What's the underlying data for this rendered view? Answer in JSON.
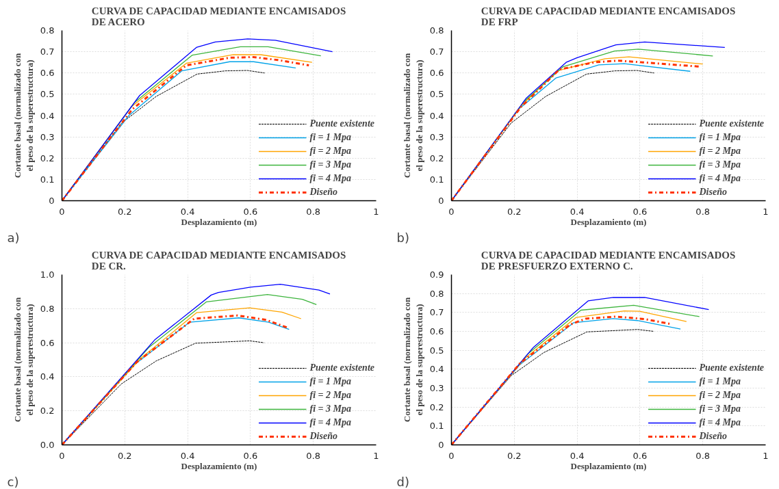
{
  "chart_data": [
    {
      "type": "line",
      "title": "CURVA DE CAPACIDAD MEDIANTE ENCAMISADOS\nDE ACERO",
      "xlabel": "Desplazamiento (m)",
      "ylabel": "Cortante basal (normalizado con\nel peso de la superestructura)",
      "annotations": [
        "a)"
      ],
      "xlim": [
        0,
        1
      ],
      "ylim": [
        0,
        0.8
      ],
      "xticks": [
        0,
        0.2,
        0.4,
        0.6,
        0.8,
        1
      ],
      "yticks": [
        0,
        0.1,
        0.2,
        0.3,
        0.4,
        0.5,
        0.6,
        0.7,
        0.8
      ],
      "grid": true,
      "legend": "bottom right",
      "series": [
        {
          "name": "Puente existente",
          "color": "#000000",
          "line_style": "dashed",
          "x": [
            0,
            0.19,
            0.3,
            0.43,
            0.52,
            0.59,
            0.645
          ],
          "values": [
            0,
            0.365,
            0.49,
            0.595,
            0.61,
            0.612,
            0.6
          ]
        },
        {
          "name": "fi = 1 Mpa",
          "color": "#00a2e8",
          "line_style": "solid",
          "x": [
            0,
            0.213,
            0.381,
            0.534,
            0.61,
            0.744
          ],
          "values": [
            0,
            0.4,
            0.61,
            0.653,
            0.653,
            0.624
          ]
        },
        {
          "name": "fi = 2 Mpa",
          "color": "#ffa500",
          "line_style": "solid",
          "x": [
            0,
            0.22,
            0.396,
            0.545,
            0.633,
            0.796
          ],
          "values": [
            0,
            0.44,
            0.646,
            0.686,
            0.686,
            0.65
          ]
        },
        {
          "name": "fi = 3 Mpa",
          "color": "#3cb43c",
          "line_style": "solid",
          "x": [
            0,
            0.232,
            0.415,
            0.568,
            0.656,
            0.824
          ],
          "values": [
            0,
            0.463,
            0.684,
            0.723,
            0.723,
            0.681
          ]
        },
        {
          "name": "fi = 4 Mpa",
          "color": "#0000ff",
          "line_style": "solid",
          "x": [
            0,
            0.247,
            0.429,
            0.488,
            0.591,
            0.679,
            0.861
          ],
          "values": [
            0,
            0.494,
            0.721,
            0.746,
            0.76,
            0.754,
            0.7
          ]
        },
        {
          "name": "Diseño",
          "color": "#ff3300",
          "line_style": "dashdot",
          "x": [
            0,
            0.224,
            0.396,
            0.534,
            0.61,
            0.687,
            0.786
          ],
          "values": [
            0,
            0.43,
            0.636,
            0.672,
            0.675,
            0.661,
            0.636
          ]
        }
      ]
    },
    {
      "type": "line",
      "title": "CURVA DE CAPACIDAD MEDIANTE ENCAMISADOS\nDE FRP",
      "xlabel": "Desplazamiento (m)",
      "ylabel": "Cortante basal (normalizado con\nel peso de la superestructura)",
      "annotations": [
        "b)"
      ],
      "xlim": [
        0,
        1
      ],
      "ylim": [
        0,
        0.8
      ],
      "xticks": [
        0,
        0.2,
        0.4,
        0.6,
        0.8,
        1
      ],
      "yticks": [
        0,
        0.1,
        0.2,
        0.3,
        0.4,
        0.5,
        0.6,
        0.7,
        0.8
      ],
      "grid": true,
      "legend": "bottom right",
      "series": [
        {
          "name": "Puente existente",
          "color": "#000000",
          "line_style": "dashed",
          "x": [
            0,
            0.19,
            0.3,
            0.43,
            0.52,
            0.59,
            0.645
          ],
          "values": [
            0,
            0.365,
            0.49,
            0.595,
            0.61,
            0.612,
            0.6
          ]
        },
        {
          "name": "fi = 1 Mpa",
          "color": "#00a2e8",
          "line_style": "solid",
          "x": [
            0,
            0.214,
            0.332,
            0.469,
            0.55,
            0.76
          ],
          "values": [
            0,
            0.43,
            0.576,
            0.638,
            0.644,
            0.608
          ]
        },
        {
          "name": "fi = 2 Mpa",
          "color": "#ffa500",
          "line_style": "solid",
          "x": [
            0,
            0.225,
            0.336,
            0.489,
            0.565,
            0.8
          ],
          "values": [
            0,
            0.45,
            0.61,
            0.667,
            0.676,
            0.642
          ]
        },
        {
          "name": "fi = 3 Mpa",
          "color": "#3cb43c",
          "line_style": "solid",
          "x": [
            0,
            0.229,
            0.355,
            0.519,
            0.595,
            0.832
          ],
          "values": [
            0,
            0.463,
            0.629,
            0.703,
            0.712,
            0.68
          ]
        },
        {
          "name": "fi = 4 Mpa",
          "color": "#0000ff",
          "line_style": "solid",
          "x": [
            0,
            0.237,
            0.365,
            0.4,
            0.523,
            0.615,
            0.87
          ],
          "values": [
            0,
            0.48,
            0.65,
            0.672,
            0.732,
            0.746,
            0.72
          ]
        },
        {
          "name": "Diseño",
          "color": "#ff3300",
          "line_style": "dashdot",
          "x": [
            0,
            0.221,
            0.344,
            0.458,
            0.53,
            0.61,
            0.79
          ],
          "values": [
            0,
            0.44,
            0.617,
            0.651,
            0.658,
            0.65,
            0.63
          ]
        }
      ]
    },
    {
      "type": "line",
      "title": "CURVA DE CAPACIDAD MEDIANTE ENCAMISADOS\nDE CR.",
      "xlabel": "Desplazamiento (m)",
      "ylabel": "Cortante basal (normalizado con\nel peso de la superestructura)",
      "annotations": [
        "c)"
      ],
      "xlim": [
        0,
        1
      ],
      "ylim": [
        0,
        1
      ],
      "xticks": [
        0,
        0.2,
        0.4,
        0.6,
        0.8,
        1
      ],
      "yticks": [
        {
          "value": 0,
          "label": "0.0"
        },
        0.2,
        0.4,
        0.6,
        0.8,
        {
          "value": 1,
          "label": "1.0"
        }
      ],
      "grid": true,
      "legend": "bottom right",
      "series": [
        {
          "name": "Puente existente",
          "color": "#000000",
          "line_style": "dashed",
          "x": [
            0,
            0.189,
            0.3,
            0.425,
            0.597,
            0.643
          ],
          "values": [
            0,
            0.358,
            0.493,
            0.597,
            0.611,
            0.6
          ]
        },
        {
          "name": "fi = 1 Mpa",
          "color": "#00a2e8",
          "line_style": "solid",
          "x": [
            0,
            0.231,
            0.406,
            0.563,
            0.658,
            0.723
          ],
          "values": [
            0,
            0.472,
            0.72,
            0.746,
            0.72,
            0.678
          ]
        },
        {
          "name": "fi = 2 Mpa",
          "color": "#ffa500",
          "line_style": "solid",
          "x": [
            0,
            0.25,
            0.429,
            0.597,
            0.7,
            0.761
          ],
          "values": [
            0,
            0.507,
            0.777,
            0.805,
            0.78,
            0.741
          ]
        },
        {
          "name": "fi = 3 Mpa",
          "color": "#3cb43c",
          "line_style": "solid",
          "x": [
            0,
            0.276,
            0.46,
            0.654,
            0.765,
            0.81
          ],
          "values": [
            0,
            0.571,
            0.84,
            0.883,
            0.855,
            0.824
          ]
        },
        {
          "name": "fi = 4 Mpa",
          "color": "#0000ff",
          "line_style": "solid",
          "x": [
            0,
            0.295,
            0.475,
            0.498,
            0.6,
            0.695,
            0.818,
            0.853
          ],
          "values": [
            0,
            0.616,
            0.88,
            0.895,
            0.926,
            0.943,
            0.909,
            0.886
          ]
        },
        {
          "name": "Diseño",
          "color": "#ff3300",
          "line_style": "dashdot",
          "x": [
            0,
            0.238,
            0.421,
            0.559,
            0.65,
            0.723
          ],
          "values": [
            0,
            0.486,
            0.741,
            0.76,
            0.734,
            0.685
          ]
        }
      ]
    },
    {
      "type": "line",
      "title": "CURVA DE CAPACIDAD MEDIANTE ENCAMISADOS\nDE PRESFUERZO EXTERNO C.",
      "xlabel": "Desplazamiento (m)",
      "ylabel": "Cortante basal (normalizado con\nel peso de la superestructura)",
      "annotations": [
        "d)"
      ],
      "xlim": [
        0,
        1
      ],
      "ylim": [
        0,
        0.9
      ],
      "xticks": [
        0,
        0.2,
        0.4,
        0.6,
        0.8,
        1
      ],
      "yticks": [
        0,
        0.1,
        0.2,
        0.3,
        0.4,
        0.5,
        0.6,
        0.7,
        0.8,
        0.9
      ],
      "grid": true,
      "legend": "bottom right",
      "series": [
        {
          "name": "Puente existente",
          "color": "#000000",
          "line_style": "dashed",
          "x": [
            0,
            0.191,
            0.294,
            0.431,
            0.592,
            0.644
          ],
          "values": [
            0,
            0.367,
            0.488,
            0.597,
            0.61,
            0.6
          ]
        },
        {
          "name": "fi = 1 Mpa",
          "color": "#00a2e8",
          "line_style": "solid",
          "x": [
            0,
            0.218,
            0.389,
            0.515,
            0.592,
            0.729
          ],
          "values": [
            0,
            0.424,
            0.646,
            0.667,
            0.657,
            0.612
          ]
        },
        {
          "name": "fi = 2 Mpa",
          "color": "#ffa500",
          "line_style": "solid",
          "x": [
            0,
            0.233,
            0.397,
            0.55,
            0.599,
            0.748
          ],
          "values": [
            0,
            0.456,
            0.674,
            0.708,
            0.706,
            0.652
          ]
        },
        {
          "name": "fi = 3 Mpa",
          "color": "#3cb43c",
          "line_style": "solid",
          "x": [
            0,
            0.244,
            0.412,
            0.58,
            0.789
          ],
          "values": [
            0,
            0.482,
            0.712,
            0.738,
            0.678
          ]
        },
        {
          "name": "fi = 4 Mpa",
          "color": "#0000ff",
          "line_style": "solid",
          "x": [
            0,
            0.26,
            0.435,
            0.515,
            0.615,
            0.819
          ],
          "values": [
            0,
            0.514,
            0.761,
            0.779,
            0.779,
            0.715
          ]
        },
        {
          "name": "Diseño",
          "color": "#ff3300",
          "line_style": "dashdot",
          "x": [
            0,
            0.218,
            0.378,
            0.427,
            0.523,
            0.615,
            0.7
          ],
          "values": [
            0,
            0.431,
            0.636,
            0.667,
            0.678,
            0.665,
            0.638
          ]
        }
      ]
    }
  ]
}
